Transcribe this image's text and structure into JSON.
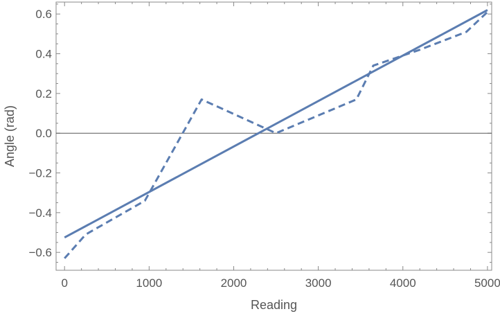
{
  "chart_data": {
    "type": "line",
    "title": "",
    "xlabel": "Reading",
    "ylabel": "Angle (rad)",
    "xlim": [
      -100,
      5050
    ],
    "ylim": [
      -0.69,
      0.66
    ],
    "x_ticks": [
      0,
      1000,
      2000,
      3000,
      4000,
      5000
    ],
    "x_tick_labels": [
      "0",
      "1000",
      "2000",
      "3000",
      "4000",
      "5000"
    ],
    "y_ticks": [
      -0.6,
      -0.4,
      -0.2,
      0.0,
      0.2,
      0.4,
      0.6
    ],
    "y_tick_labels": [
      "−0.6",
      "−0.4",
      "−0.2",
      "0.0",
      "0.2",
      "0.4",
      "0.6"
    ],
    "grid": false,
    "reference_line_y": 0,
    "series": [
      {
        "style": "dashed",
        "color": "#5b7db1",
        "x": [
          0,
          250,
          950,
          1620,
          2500,
          3450,
          3650,
          4200,
          4750,
          5000
        ],
        "y": [
          -0.63,
          -0.51,
          -0.34,
          0.17,
          0.0,
          0.17,
          0.34,
          0.42,
          0.51,
          0.61
        ]
      },
      {
        "style": "solid",
        "color": "#5b7db1",
        "x": [
          0,
          5000
        ],
        "y": [
          -0.525,
          0.62
        ]
      }
    ]
  }
}
